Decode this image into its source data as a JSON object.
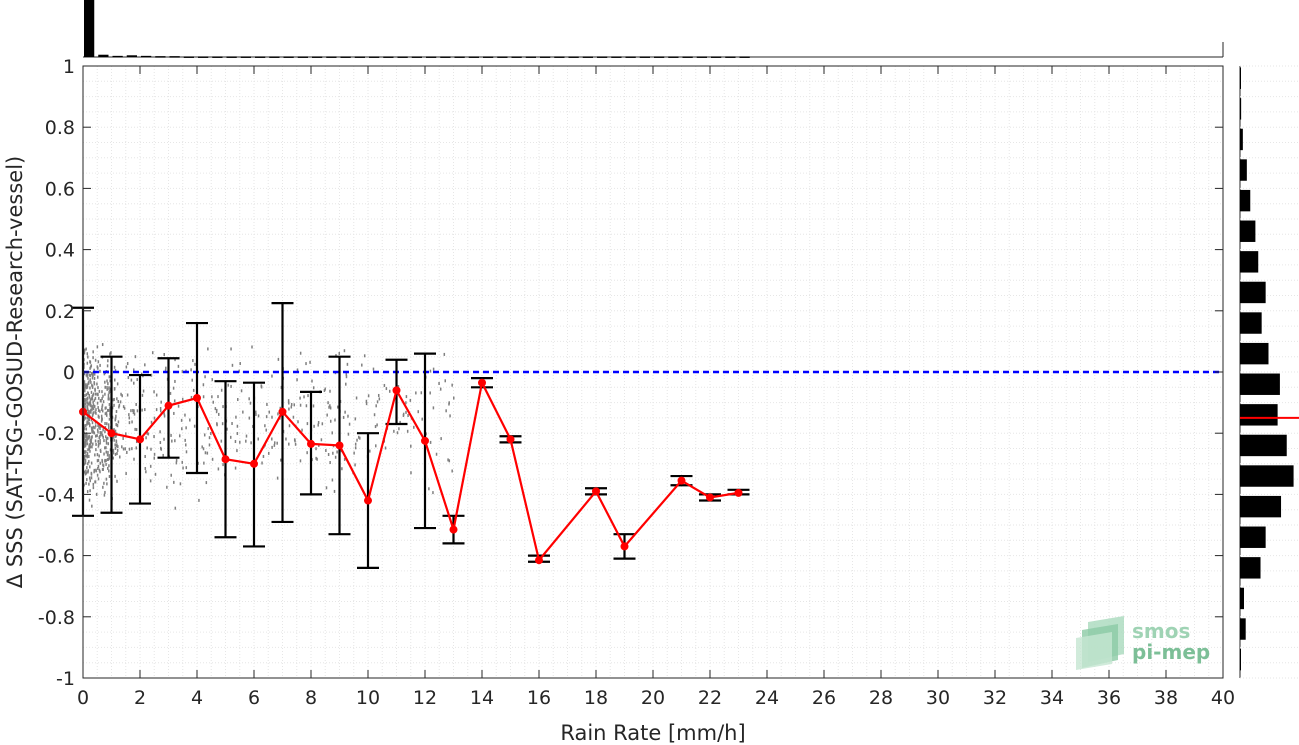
{
  "chart_data": {
    "type": "line",
    "xlabel": "Rain Rate [mm/h]",
    "ylabel": "Δ SSS (SAT-TSG-GOSUD-Research-vessel)",
    "xlim": [
      0,
      40
    ],
    "ylim": [
      -1,
      1
    ],
    "xticks": [
      0,
      2,
      4,
      6,
      8,
      10,
      12,
      14,
      16,
      18,
      20,
      22,
      24,
      26,
      28,
      30,
      32,
      34,
      36,
      38,
      40
    ],
    "yticks": [
      1,
      0.8,
      0.6,
      0.4,
      0.2,
      0,
      -0.2,
      -0.4,
      -0.6,
      -0.8,
      -1
    ],
    "xtick_labels": [
      "0",
      "2",
      "4",
      "6",
      "8",
      "10",
      "12",
      "14",
      "16",
      "18",
      "20",
      "22",
      "24",
      "26",
      "28",
      "30",
      "32",
      "34",
      "36",
      "38",
      "40"
    ],
    "ytick_labels": [
      "1",
      "0.8",
      "0.6",
      "0.4",
      "0.2",
      "0",
      "-0.2",
      "-0.4",
      "-0.6",
      "-0.8",
      "-1"
    ],
    "grid": true,
    "reference_line": {
      "y": 0,
      "color": "#0000ff",
      "style": "dashed"
    },
    "series": [
      {
        "color": "#ff0000",
        "x": [
          0,
          1,
          2,
          3,
          4,
          5,
          6,
          7,
          8,
          9,
          10,
          11,
          12,
          13,
          14,
          15,
          16,
          18,
          19,
          21,
          22,
          23
        ],
        "y": [
          -0.13,
          -0.2,
          -0.22,
          -0.11,
          -0.085,
          -0.285,
          -0.3,
          -0.13,
          -0.235,
          -0.24,
          -0.42,
          -0.06,
          -0.225,
          -0.515,
          -0.035,
          -0.22,
          -0.615,
          -0.39,
          -0.57,
          -0.355,
          -0.41,
          -0.395
        ],
        "err_low": [
          -0.47,
          -0.46,
          -0.43,
          -0.28,
          -0.33,
          -0.54,
          -0.57,
          -0.49,
          -0.4,
          -0.53,
          -0.64,
          -0.17,
          -0.51,
          -0.56,
          -0.05,
          -0.23,
          -0.62,
          -0.4,
          -0.61,
          -0.37,
          -0.42,
          -0.4
        ],
        "err_high": [
          0.21,
          0.05,
          -0.01,
          0.045,
          0.16,
          -0.03,
          -0.035,
          0.225,
          -0.065,
          0.05,
          -0.2,
          0.04,
          0.06,
          -0.47,
          -0.02,
          -0.21,
          -0.6,
          -0.38,
          -0.53,
          -0.34,
          -0.4,
          -0.385
        ]
      }
    ],
    "scatter_color": "#808080",
    "top_histogram": {
      "bin_width": 0.5,
      "relative_counts": [
        1.0,
        0.04,
        0.02,
        0.03,
        0.02,
        0.015,
        0.015,
        0.01,
        0.01,
        0.01,
        0.01,
        0.01,
        0.01,
        0.01,
        0.01,
        0.01,
        0.01,
        0.01,
        0.01,
        0.01,
        0.01,
        0.01,
        0.01,
        0.01,
        0.01,
        0.01,
        0.01,
        0.01,
        0.01,
        0.01,
        0.01,
        0.01,
        0.01,
        0.01,
        0.01,
        0.01,
        0.01,
        0.01,
        0.01,
        0.01,
        0.01,
        0.01,
        0.01,
        0.01,
        0.01,
        0.01,
        0.01
      ]
    },
    "right_histogram": {
      "bin_centers": [
        1.0,
        0.9,
        0.8,
        0.7,
        0.6,
        0.5,
        0.4,
        0.3,
        0.2,
        0.1,
        0.0,
        -0.1,
        -0.2,
        -0.3,
        -0.4,
        -0.5,
        -0.6,
        -0.7,
        -0.8,
        -0.9
      ],
      "relative_counts": [
        0.01,
        0.02,
        0.05,
        0.12,
        0.18,
        0.27,
        0.32,
        0.45,
        0.38,
        0.5,
        0.7,
        0.66,
        0.82,
        0.94,
        0.72,
        0.45,
        0.36,
        0.07,
        0.1,
        0.01
      ],
      "mean": -0.15,
      "mean_color": "#ff0000"
    }
  },
  "logo": {
    "line1": "smos",
    "line2": "pi-mep"
  }
}
